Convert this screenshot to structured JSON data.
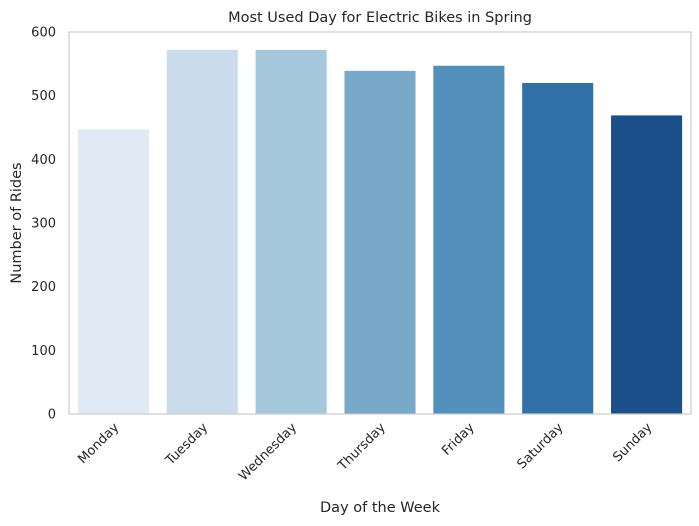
{
  "chart_data": {
    "type": "bar",
    "title": "Most Used Day for Electric Bikes in Spring",
    "xlabel": "Day of the Week",
    "ylabel": "Number of Rides",
    "categories": [
      "Monday",
      "Tuesday",
      "Wednesday",
      "Thursday",
      "Friday",
      "Saturday",
      "Sunday"
    ],
    "values": [
      447,
      572,
      572,
      539,
      547,
      520,
      469
    ],
    "ylim": [
      0,
      600
    ],
    "yticks": [
      0,
      100,
      200,
      300,
      400,
      500,
      600
    ],
    "grid": false,
    "colors": [
      "#dfeaf5",
      "#cadcec",
      "#a5c8dc",
      "#79a9c9",
      "#528fba",
      "#3171a7",
      "#1a4f89"
    ]
  }
}
